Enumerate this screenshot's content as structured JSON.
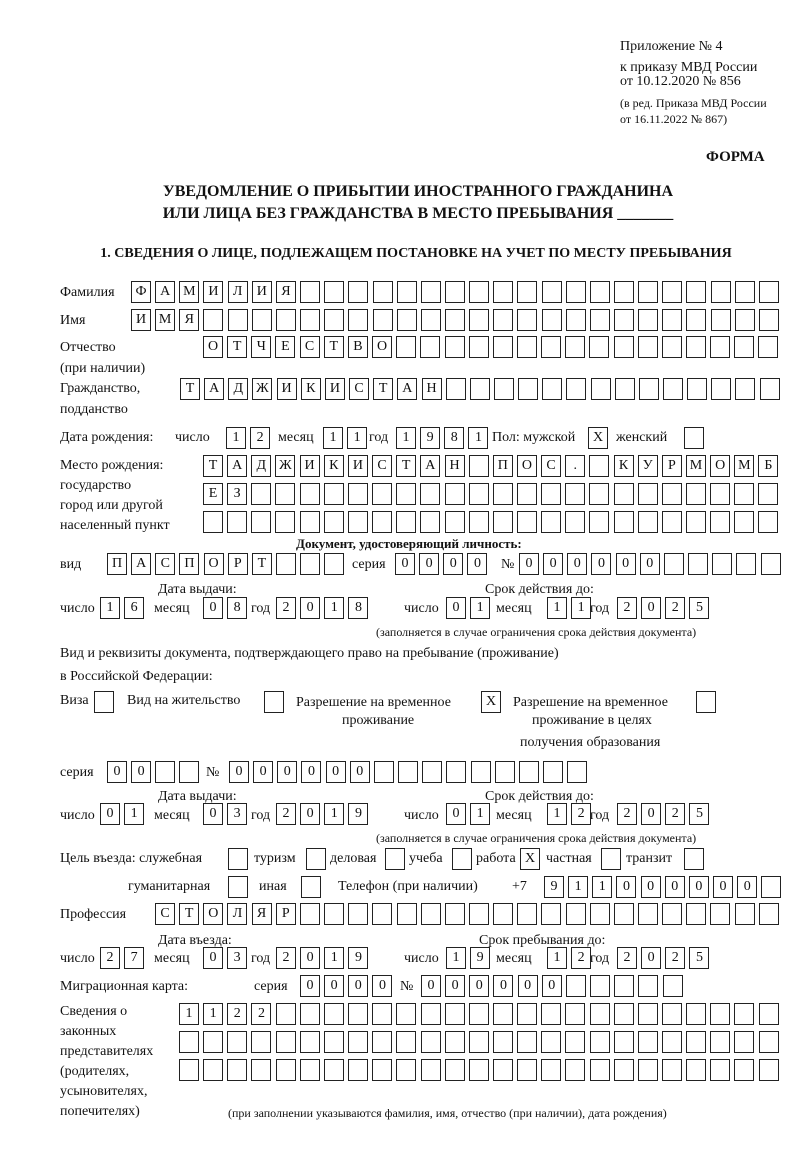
{
  "header": {
    "appendix_line1": "Приложение № 4",
    "appendix_line2": "к приказу МВД России",
    "appendix_line3": "от 10.12.2020 № 856",
    "appendix_line4": "(в ред. Приказа МВД России",
    "appendix_line5": "от 16.11.2022 № 867)",
    "form_label": "ФОРМА",
    "title_line1": "УВЕДОМЛЕНИЕ О ПРИБЫТИИ ИНОСТРАННОГО ГРАЖДАНИНА",
    "title_line2": "ИЛИ ЛИЦА БЕЗ ГРАЖДАНСТВА В МЕСТО ПРЕБЫВАНИЯ _______",
    "section1": "1. СВЕДЕНИЯ О ЛИЦЕ, ПОДЛЕЖАЩЕМ ПОСТАНОВКЕ НА УЧЕТ ПО МЕСТУ ПРЕБЫВАНИЯ"
  },
  "labels": {
    "surname": "Фамилия",
    "name": "Имя",
    "patronymic": "Отчество",
    "patronymic2": "(при наличии)",
    "citizenship": "Гражданство,",
    "citizenship2": "подданство",
    "birth_date": "Дата рождения:",
    "day": "число",
    "month": "месяц",
    "year": "год",
    "sex": "Пол: мужской",
    "female": "женский",
    "birthplace1": "Место рождения:",
    "birthplace2": "государство",
    "birthplace3": "город или другой",
    "birthplace4": "населенный пункт",
    "id_doc": "Документ, удостоверяющий личность:",
    "kind": "вид",
    "series": "серия",
    "number": "№",
    "issue_date": "Дата выдачи:",
    "valid_until": "Срок действия до:",
    "validity_note": "(заполняется в случае ограничения срока действия документа)",
    "stay_doc1": "Вид и реквизиты документа, подтверждающего право на пребывание (проживание)",
    "stay_doc2": "в Российской Федерации:",
    "visa": "Виза",
    "residence": "Вид на жительство",
    "trp1": "Разрешение на временное",
    "trp2": "проживание",
    "trpe1": "Разрешение на временное",
    "trpe2": "проживание в целях",
    "trpe3": "получения образования",
    "purpose": "Цель въезда: служебная",
    "tourism": "туризм",
    "business": "деловая",
    "study": "учеба",
    "work": "работа",
    "private": "частная",
    "transit": "транзит",
    "humanitarian": "гуманитарная",
    "other": "иная",
    "phone": "Телефон (при наличии)",
    "phone_prefix": "+7",
    "profession": "Профессия",
    "entry_date": "Дата въезда:",
    "stay_until": "Срок пребывания до:",
    "migration_card": "Миграционная карта:",
    "reps1": "Сведения о",
    "reps2": "законных",
    "reps3": "представителях",
    "reps4": "(родителях,",
    "reps5": "усыновителях,",
    "reps6": "попечителях)",
    "reps_note": "(при заполнении указываются фамилия, имя, отчество (при наличии), дата рождения)"
  },
  "cells": {
    "surname": [
      "Ф",
      "А",
      "М",
      "И",
      "Л",
      "И",
      "Я"
    ],
    "name": [
      "И",
      "М",
      "Я"
    ],
    "patronymic": [
      "О",
      "Т",
      "Ч",
      "Е",
      "С",
      "Т",
      "В",
      "О"
    ],
    "citizenship": [
      "Т",
      "А",
      "Д",
      "Ж",
      "И",
      "К",
      "И",
      "С",
      "Т",
      "А",
      "Н"
    ],
    "birth_day": [
      "1",
      "2"
    ],
    "birth_month": [
      "1",
      "1"
    ],
    "birth_year": [
      "1",
      "9",
      "8",
      "1"
    ],
    "sex_male": [
      "X"
    ],
    "sex_female": [
      ""
    ],
    "birthplace1": [
      "Т",
      "А",
      "Д",
      "Ж",
      "И",
      "К",
      "И",
      "С",
      "Т",
      "А",
      "Н",
      "",
      "П",
      "О",
      "С",
      ".",
      "",
      "К",
      "У",
      "Р",
      "М",
      "О",
      "М",
      "Б"
    ],
    "birthplace2": [
      "Е",
      "З"
    ],
    "birthplace3": [],
    "id_kind": [
      "П",
      "А",
      "С",
      "П",
      "О",
      "Р",
      "Т"
    ],
    "id_series": [
      "0",
      "0",
      "0",
      "0"
    ],
    "id_number": [
      "0",
      "0",
      "0",
      "0",
      "0",
      "0"
    ],
    "id_issue_day": [
      "1",
      "6"
    ],
    "id_issue_month": [
      "0",
      "8"
    ],
    "id_issue_year": [
      "2",
      "0",
      "1",
      "8"
    ],
    "id_valid_day": [
      "0",
      "1"
    ],
    "id_valid_month": [
      "1",
      "1"
    ],
    "id_valid_year": [
      "2",
      "0",
      "2",
      "5"
    ],
    "visa": [
      ""
    ],
    "residence": [
      ""
    ],
    "trp": [
      "X"
    ],
    "trpe": [
      ""
    ],
    "stay_series": [
      "0",
      "0"
    ],
    "stay_number": [
      "0",
      "0",
      "0",
      "0",
      "0",
      "0"
    ],
    "stay_issue_day": [
      "0",
      "1"
    ],
    "stay_issue_month": [
      "0",
      "3"
    ],
    "stay_issue_year": [
      "2",
      "0",
      "1",
      "9"
    ],
    "stay_valid_day": [
      "0",
      "1"
    ],
    "stay_valid_month": [
      "1",
      "2"
    ],
    "stay_valid_year": [
      "2",
      "0",
      "2",
      "5"
    ],
    "p_service": [
      ""
    ],
    "p_tourism": [
      ""
    ],
    "p_business": [
      ""
    ],
    "p_study": [
      ""
    ],
    "p_work": [
      "X"
    ],
    "p_private": [
      ""
    ],
    "p_transit": [
      ""
    ],
    "p_humanitarian": [
      ""
    ],
    "p_other": [
      ""
    ],
    "phone": [
      "9",
      "1",
      "1",
      "0",
      "0",
      "0",
      "0",
      "0",
      "0"
    ],
    "profession": [
      "С",
      "Т",
      "О",
      "Л",
      "Я",
      "Р"
    ],
    "entry_day": [
      "2",
      "7"
    ],
    "entry_month": [
      "0",
      "3"
    ],
    "entry_year": [
      "2",
      "0",
      "1",
      "9"
    ],
    "stay_day": [
      "1",
      "9"
    ],
    "stay_month": [
      "1",
      "2"
    ],
    "stay_year": [
      "2",
      "0",
      "2",
      "5"
    ],
    "mc_series": [
      "0",
      "0",
      "0",
      "0"
    ],
    "mc_number": [
      "0",
      "0",
      "0",
      "0",
      "0",
      "0"
    ],
    "reps1": [
      "1",
      "1",
      "2",
      "2"
    ],
    "reps2": [],
    "reps3": []
  }
}
